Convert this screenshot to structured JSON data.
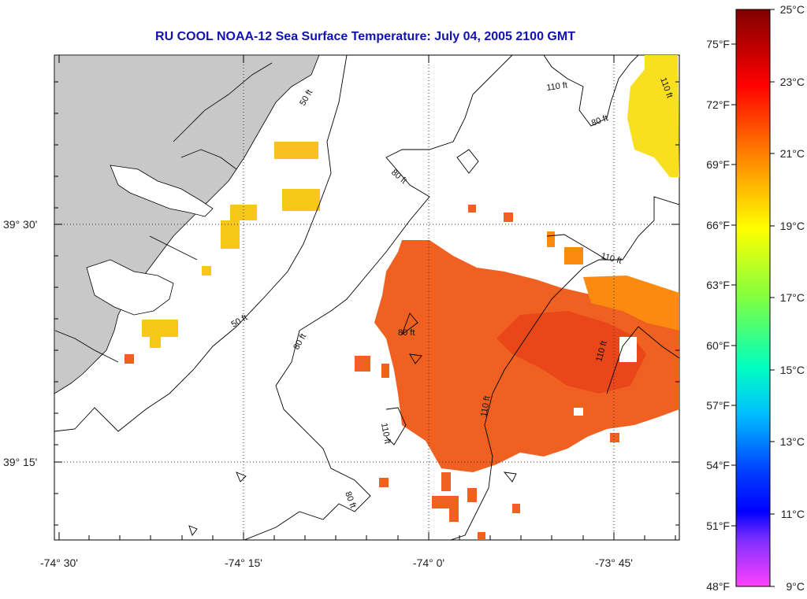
{
  "title": "RU COOL  NOAA-12  Sea Surface Temperature:  July 04, 2005 2100 GMT",
  "axes": {
    "lon_ticks": [
      "-74° 30'",
      "-74° 15'",
      "-74° 0'",
      "-73° 45'"
    ],
    "lat_ticks": [
      "39° 30'",
      "39° 15'"
    ]
  },
  "colorbar": {
    "fahrenheit": [
      "75°F",
      "72°F",
      "69°F",
      "66°F",
      "63°F",
      "60°F",
      "57°F",
      "54°F",
      "51°F",
      "48°F"
    ],
    "celsius": [
      "25°C",
      "23°C",
      "21°C",
      "19°C",
      "17°C",
      "15°C",
      "13°C",
      "11°C",
      "9°C"
    ],
    "colors": [
      "#800000",
      "#ff0000",
      "#ff8000",
      "#ffff00",
      "#80ff00",
      "#00ff80",
      "#00ffff",
      "#0080ff",
      "#0000ff",
      "#8000ff",
      "#ff40ff"
    ]
  },
  "isobaths": [
    "50 ft",
    "80 ft",
    "110 ft"
  ],
  "colors": {
    "land": "#c8c8c8",
    "warm_sst": "#f06020",
    "mid_sst": "#fb8a10",
    "cool_sst": "#f8dc10"
  }
}
